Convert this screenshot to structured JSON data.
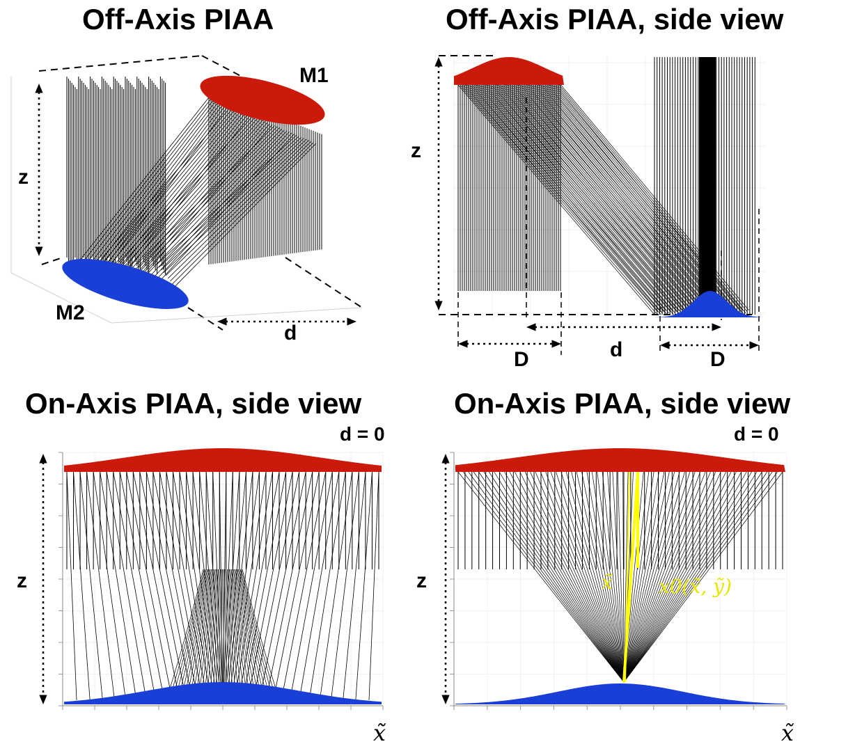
{
  "panels": {
    "offaxis": {
      "title": "Off-Axis PIAA",
      "m1_label": "M1",
      "m2_label": "M2",
      "z_label": "z",
      "d_label": "d"
    },
    "offaxis_side": {
      "title": "Off-Axis PIAA, side view",
      "z_label": "z",
      "D_left": "D",
      "d_label": "d",
      "D_right": "D"
    },
    "onaxis_left": {
      "title": "On-Axis PIAA, side view",
      "d_eq": "d = 0",
      "z_label": "z",
      "x_label": "x̃"
    },
    "onaxis_right": {
      "title": "On-Axis PIAA, side view",
      "d_eq": "d = 0",
      "z_label": "z",
      "x_label": "x̃",
      "ray_label_1": "x̃",
      "ray_label_2": "x0(x̃, ỹ)"
    }
  },
  "colors": {
    "mirror_top": "#cc1a0a",
    "mirror_bottom": "#1a3fd6",
    "rays": "#000000",
    "highlight": "#ffff00"
  }
}
